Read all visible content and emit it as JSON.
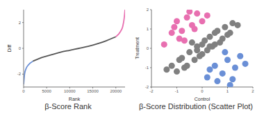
{
  "chart_data": [
    {
      "type": "line",
      "title": "β-Score Rank",
      "x_label": "Rank",
      "y_label": "Diff",
      "xlim": [
        0,
        22000
      ],
      "xticks": [
        0,
        5000,
        10000,
        15000,
        20000
      ],
      "ylim": [
        -3,
        3
      ],
      "yticks": [
        -2,
        0,
        2
      ],
      "series": [
        {
          "color": "#6a8fd6",
          "x": [
            0,
            200,
            500,
            1000,
            2000
          ],
          "values": [
            -2.8,
            -2.0,
            -1.6,
            -1.3,
            -1.0
          ]
        },
        {
          "color": "#555555",
          "x": [
            2000,
            4000,
            6000,
            8000,
            10000,
            12000,
            14000,
            16000,
            18000,
            20000
          ],
          "values": [
            -1.0,
            -0.7,
            -0.5,
            -0.3,
            -0.15,
            0,
            0.15,
            0.35,
            0.6,
            0.9
          ]
        },
        {
          "color": "#e86fb0",
          "x": [
            20000,
            21000,
            21500,
            21800,
            22000
          ],
          "values": [
            0.9,
            1.3,
            1.7,
            2.3,
            3.0
          ]
        }
      ]
    },
    {
      "type": "scatter",
      "title": "β-Score Distribution (Scatter Plot)",
      "x_label": "Control",
      "y_label": "Treatment",
      "xlim": [
        -2,
        2
      ],
      "xticks": [
        -2,
        -1,
        0,
        1,
        2
      ],
      "ylim": [
        -2,
        2
      ],
      "yticks": [
        -2,
        -1,
        0,
        1,
        2
      ],
      "series": [
        {
          "color": "#808080",
          "x": [
            -1.2,
            -1,
            -0.8,
            -0.6,
            -0.5,
            -0.3,
            -0.2,
            0,
            0.1,
            0.2,
            0.3,
            0.5,
            0.6,
            0.8,
            1,
            1.2,
            -0.9,
            -0.4,
            0,
            0.4,
            0.9,
            -0.7,
            -0.1,
            0.3,
            0.7,
            1.1,
            -0.2,
            0.5,
            1.4,
            -1.4
          ],
          "values": [
            -0.9,
            -1.2,
            -0.5,
            -0.9,
            -0.2,
            -0.6,
            0.1,
            -0.3,
            0.4,
            -0.1,
            0.6,
            0.2,
            0.9,
            0.5,
            0.7,
            1.3,
            -0.6,
            0.3,
            0.2,
            0.1,
            1.1,
            -1,
            -0.4,
            0.1,
            0.3,
            0.8,
            -0.1,
            0.8,
            1.2,
            -1.1
          ]
        },
        {
          "color": "#e86fb0",
          "x": [
            -1.5,
            -1.2,
            -1,
            -0.8,
            -0.6,
            -0.4,
            -0.2,
            0,
            -0.9,
            -0.5,
            -0.3,
            0.2,
            -1.1,
            -0.7
          ],
          "values": [
            0.2,
            0.8,
            1.4,
            0.9,
            1.6,
            1.2,
            1.8,
            1.4,
            0.5,
            1.9,
            1,
            1.7,
            1.1,
            0.4
          ]
        },
        {
          "color": "#6a8fd6",
          "x": [
            0.2,
            0.5,
            0.8,
            1,
            1.3,
            1.5,
            0.6,
            0.9,
            1.2,
            1.7,
            0.3,
            1.1
          ],
          "values": [
            -1.5,
            -0.9,
            -1.3,
            -0.6,
            -1,
            -0.4,
            -1.7,
            -0.2,
            -1.6,
            -0.8,
            -1.1,
            -1.9
          ]
        }
      ]
    }
  ]
}
